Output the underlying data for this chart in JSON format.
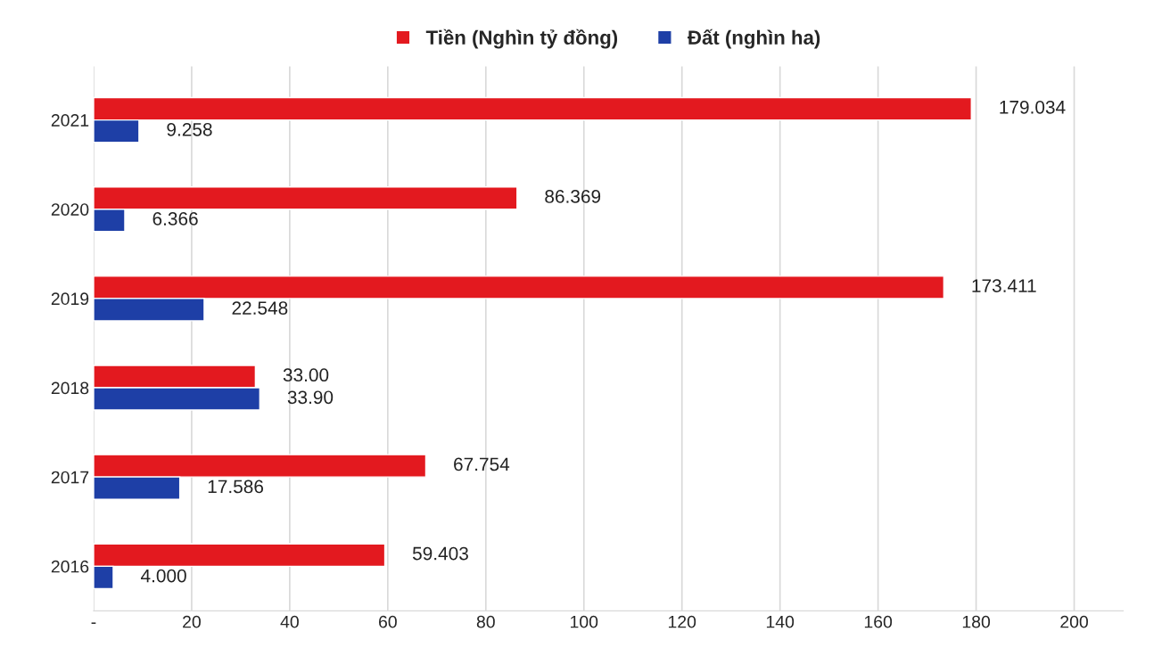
{
  "chart_data": {
    "type": "bar",
    "orientation": "horizontal",
    "categories": [
      "2021",
      "2020",
      "2019",
      "2018",
      "2017",
      "2016"
    ],
    "series": [
      {
        "name": "Tiền (Nghìn tỷ đồng)",
        "color": "#e3191f",
        "values": [
          179.034,
          86.369,
          173.411,
          33.0,
          67.754,
          59.403
        ],
        "value_labels": [
          "179.034",
          "86.369",
          "173.411",
          "33.00",
          "67.754",
          "59.403"
        ]
      },
      {
        "name": "Đất (nghìn ha)",
        "color": "#1e3fa6",
        "values": [
          9.258,
          6.366,
          22.548,
          33.9,
          17.586,
          4.0
        ],
        "value_labels": [
          "9.258",
          "6.366",
          "22.548",
          "33.90",
          "17.586",
          "4.000"
        ]
      }
    ],
    "xlim": [
      0,
      210
    ],
    "xticks": [
      {
        "value": 0,
        "label": "-"
      },
      20,
      40,
      60,
      80,
      100,
      120,
      140,
      160,
      180,
      200
    ],
    "grid": "x",
    "legend": "top"
  }
}
